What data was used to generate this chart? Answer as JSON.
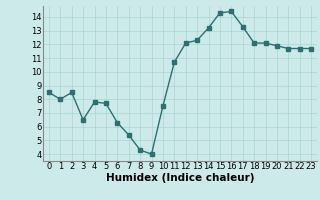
{
  "x": [
    0,
    1,
    2,
    3,
    4,
    5,
    6,
    7,
    8,
    9,
    10,
    11,
    12,
    13,
    14,
    15,
    16,
    17,
    18,
    19,
    20,
    21,
    22,
    23
  ],
  "y": [
    8.5,
    8.0,
    8.5,
    6.5,
    7.8,
    7.7,
    6.3,
    5.4,
    4.3,
    4.0,
    7.5,
    10.7,
    12.1,
    12.3,
    13.2,
    14.3,
    14.4,
    13.3,
    12.1,
    12.1,
    11.9,
    11.7,
    11.7,
    11.7
  ],
  "line_color": "#2d7070",
  "marker": "s",
  "markersize": 2.5,
  "linewidth": 1.0,
  "xlabel": "Humidex (Indice chaleur)",
  "ylabel": "",
  "title": "",
  "xlim": [
    -0.5,
    23.5
  ],
  "ylim": [
    3.5,
    14.8
  ],
  "yticks": [
    4,
    5,
    6,
    7,
    8,
    9,
    10,
    11,
    12,
    13,
    14
  ],
  "xticks": [
    0,
    1,
    2,
    3,
    4,
    5,
    6,
    7,
    8,
    9,
    10,
    11,
    12,
    13,
    14,
    15,
    16,
    17,
    18,
    19,
    20,
    21,
    22,
    23
  ],
  "xtick_labels": [
    "0",
    "1",
    "2",
    "3",
    "4",
    "5",
    "6",
    "7",
    "8",
    "9",
    "10",
    "11",
    "12",
    "13",
    "14",
    "15",
    "16",
    "17",
    "18",
    "19",
    "20",
    "21",
    "22",
    "23"
  ],
  "background_color": "#cceaea",
  "grid_color": "#aad4d4",
  "tick_fontsize": 6,
  "xlabel_fontsize": 7.5,
  "xlabel_fontweight": "bold"
}
